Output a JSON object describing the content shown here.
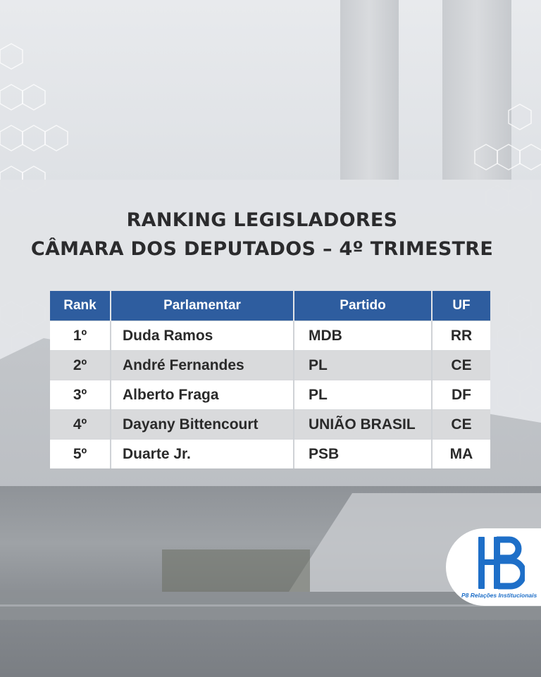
{
  "title": {
    "line1": "RANKING LEGISLADORES",
    "line2": "CÂMARA DOS DEPUTADOS – 4º TRIMESTRE"
  },
  "table": {
    "headers": [
      "Rank",
      "Parlamentar",
      "Partido",
      "UF"
    ],
    "rows": [
      {
        "rank": "1º",
        "name": "Duda Ramos",
        "party": "MDB",
        "uf": "RR"
      },
      {
        "rank": "2º",
        "name": "André Fernandes",
        "party": "PL",
        "uf": "CE"
      },
      {
        "rank": "3º",
        "name": "Alberto Fraga",
        "party": "PL",
        "uf": "DF"
      },
      {
        "rank": "4º",
        "name": "Dayany Bittencourt",
        "party": "UNIÃO BRASIL",
        "uf": "CE"
      },
      {
        "rank": "5º",
        "name": "Duarte Jr.",
        "party": "PSB",
        "uf": "MA"
      }
    ]
  },
  "logo": {
    "caption": "P8 Relações Institucionais",
    "icon": "p8-logo-icon"
  },
  "colors": {
    "header_bg": "#2e5d9f",
    "logo_blue": "#1e6fc8",
    "title_text": "#2b2b2d"
  }
}
